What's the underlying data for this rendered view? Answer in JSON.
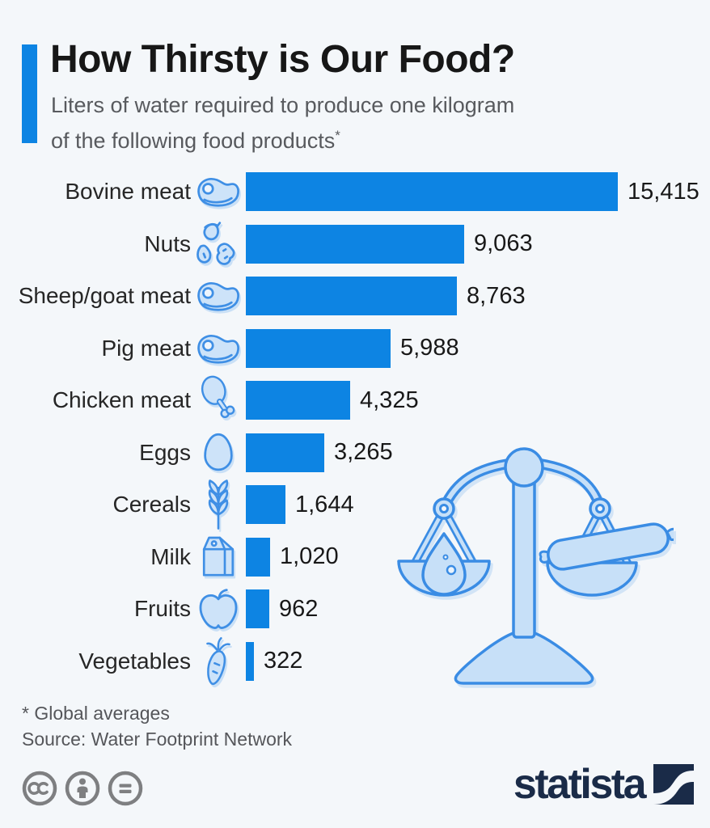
{
  "page": {
    "background": "#f4f7fa"
  },
  "header": {
    "title": "How Thirsty is Our Food?",
    "subtitle_line1": "Liters of water required to produce one kilogram",
    "subtitle_line2": "of the following food products",
    "footnote_marker": "*",
    "accent_color": "#0d84e3"
  },
  "chart_data": {
    "type": "bar",
    "orientation": "horizontal",
    "title": "Liters of water required to produce one kilogram of the following food products*",
    "unit": "liters of water per kg",
    "categories": [
      "Bovine meat",
      "Nuts",
      "Sheep/goat meat",
      "Pig meat",
      "Chicken meat",
      "Eggs",
      "Cereals",
      "Milk",
      "Fruits",
      "Vegetables"
    ],
    "values": [
      15415,
      9063,
      8763,
      5988,
      4325,
      3265,
      1644,
      1020,
      962,
      322
    ],
    "value_labels": [
      "15,415",
      "9,063",
      "8,763",
      "5,988",
      "4,325",
      "3,265",
      "1,644",
      "1,020",
      "962",
      "322"
    ],
    "icons": [
      "steak-icon",
      "nuts-icon",
      "steak-icon",
      "steak-icon",
      "drumstick-icon",
      "egg-icon",
      "wheat-icon",
      "milk-carton-icon",
      "apple-icon",
      "carrot-icon"
    ],
    "bar_color": "#0d84e3",
    "xlim": [
      0,
      15415
    ],
    "grid": false,
    "legend": false
  },
  "illustration": {
    "name": "balance-scale-water-drop-vs-sausage",
    "fill": "#c7e0f8",
    "stroke": "#3a8ce4"
  },
  "footer": {
    "footnote": "* Global averages",
    "source": "Source: Water Footprint Network",
    "license": {
      "icons": [
        "cc-icon",
        "cc-by-icon",
        "cc-nd-icon"
      ],
      "color": "#7e7f81"
    },
    "brand": {
      "wordmark": "statista",
      "color": "#1a2b48"
    }
  }
}
